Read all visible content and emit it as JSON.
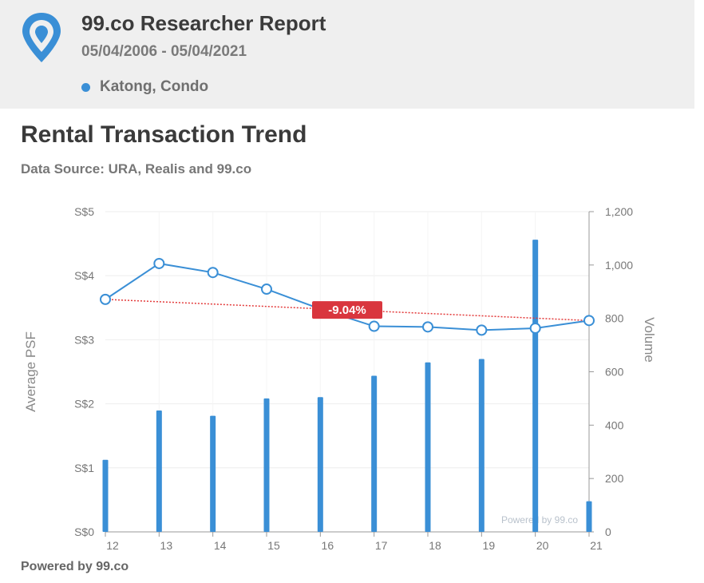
{
  "header": {
    "report_title": "99.co Researcher Report",
    "date_range": "05/04/2006 - 05/04/2021",
    "legend_label": "Katong, Condo",
    "legend_color": "#3a8fd6",
    "logo_icon": "map-pin-logo-icon"
  },
  "chart_data": {
    "type": "bar",
    "title": "Rental Transaction Trend",
    "subtitle": "Data Source: URA, Realis and 99.co",
    "categories": [
      "12",
      "13",
      "14",
      "15",
      "16",
      "17",
      "18",
      "19",
      "20",
      "21"
    ],
    "series": [
      {
        "type": "bar",
        "axis": "right",
        "values": [
          270,
          455,
          435,
          500,
          505,
          585,
          635,
          648,
          1095,
          115
        ]
      },
      {
        "type": "line",
        "axis": "left",
        "values": [
          3.63,
          4.19,
          4.05,
          3.79,
          3.48,
          3.21,
          3.2,
          3.15,
          3.18,
          3.3
        ]
      }
    ],
    "trendline": {
      "start": 3.63,
      "end": 3.3,
      "color": "#e33a3a"
    },
    "annotation": {
      "label": "-9.04%",
      "at_category": "16.5",
      "color": "#d9363e"
    },
    "y_left": {
      "label": "Average PSF",
      "range": [
        0,
        5
      ],
      "ticks": [
        "S$0",
        "S$1",
        "S$2",
        "S$3",
        "S$4",
        "S$5"
      ]
    },
    "y_right": {
      "label": "Volume",
      "range": [
        0,
        1200
      ],
      "ticks": [
        "0",
        "200",
        "400",
        "600",
        "800",
        "1,000",
        "1,200"
      ]
    },
    "grid": true,
    "colors": {
      "bars": "#3a8fd6",
      "line": "#3a8fd6",
      "grid": "#eeeeee"
    },
    "watermark": "Powered by 99.co"
  },
  "footer": {
    "text": "Powered by 99.co"
  }
}
